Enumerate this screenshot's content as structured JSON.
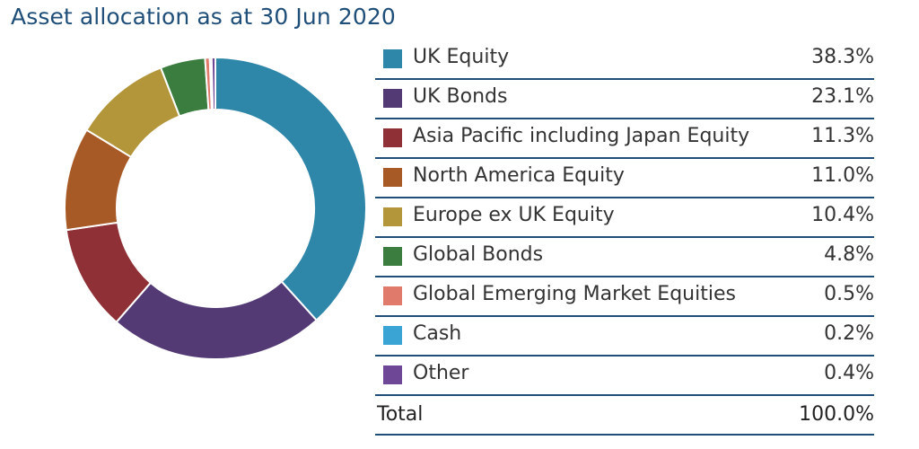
{
  "chart_data": {
    "type": "pie",
    "title": "Asset allocation as at 30 Jun 2020",
    "slices": [
      {
        "label": "UK Equity",
        "value": 38.3,
        "display": "38.3%",
        "color": "#2e86a8"
      },
      {
        "label": "UK Bonds",
        "value": 23.1,
        "display": "23.1%",
        "color": "#533a74"
      },
      {
        "label": "Asia Pacific including Japan Equity",
        "value": 11.3,
        "display": "11.3%",
        "color": "#8e3035"
      },
      {
        "label": "North America Equity",
        "value": 11.0,
        "display": "11.0%",
        "color": "#a85a26"
      },
      {
        "label": "Europe ex UK Equity",
        "value": 10.4,
        "display": "10.4%",
        "color": "#b3963a"
      },
      {
        "label": "Global Bonds",
        "value": 4.8,
        "display": "4.8%",
        "color": "#3a7d3e"
      },
      {
        "label": "Global Emerging Market Equities",
        "value": 0.5,
        "display": "0.5%",
        "color": "#e07b6b"
      },
      {
        "label": "Cash",
        "value": 0.2,
        "display": "0.2%",
        "color": "#3aa4d4"
      },
      {
        "label": "Other",
        "value": 0.4,
        "display": "0.4%",
        "color": "#6e4796"
      }
    ],
    "total_label": "Total",
    "total_value": "100.0%",
    "legend_position": "right"
  }
}
